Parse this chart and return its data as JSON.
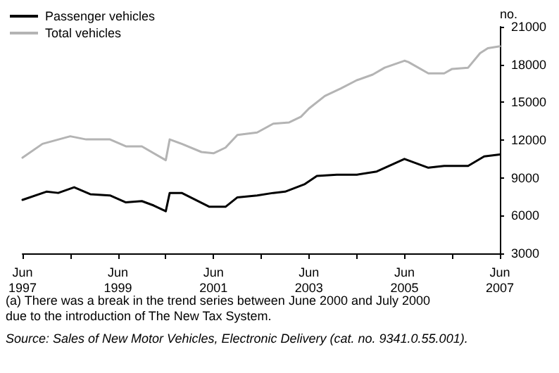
{
  "chart_data": {
    "type": "line",
    "ylabel": "no.",
    "xlim": [
      "1997-06",
      "2007-06"
    ],
    "xticks": [
      {
        "value": "1997-06",
        "label": "Jun\n1997"
      },
      {
        "value": "1998-06",
        "label": null
      },
      {
        "value": "1999-06",
        "label": "Jun\n1999"
      },
      {
        "value": "2000-06",
        "label": null
      },
      {
        "value": "2001-06",
        "label": "Jun\n2001"
      },
      {
        "value": "2002-06",
        "label": null
      },
      {
        "value": "2003-06",
        "label": "Jun\n2003"
      },
      {
        "value": "2004-06",
        "label": null
      },
      {
        "value": "2005-06",
        "label": "Jun\n2005"
      },
      {
        "value": "2006-06",
        "label": null
      },
      {
        "value": "2007-06",
        "label": "Jun\n2007"
      }
    ],
    "ylim": [
      3000,
      21000
    ],
    "yticks": [
      3000,
      6000,
      9000,
      12000,
      15000,
      18000,
      21000
    ],
    "series": [
      {
        "name": "Passenger vehicles",
        "color": "#000000",
        "x": [
          "1997-06",
          "1997-12",
          "1998-03",
          "1998-07",
          "1998-11",
          "1999-04",
          "1999-08",
          "1999-12",
          "2000-03",
          "2000-06",
          "2000-07",
          "2000-10",
          "2001-05",
          "2001-09",
          "2001-12",
          "2002-05",
          "2002-09",
          "2002-12",
          "2003-05",
          "2003-08",
          "2004-01",
          "2004-06",
          "2004-11",
          "2005-06",
          "2005-12",
          "2006-04",
          "2006-10",
          "2007-02",
          "2007-06"
        ],
        "values": [
          7250,
          7900,
          7800,
          8250,
          7700,
          7600,
          7050,
          7150,
          6800,
          6350,
          7800,
          7800,
          6700,
          6700,
          7450,
          7600,
          7800,
          7900,
          8500,
          9150,
          9250,
          9250,
          9500,
          10500,
          9800,
          9950,
          9950,
          10700,
          10850
        ]
      },
      {
        "name": "Total vehicles",
        "color": "#b4b4b4",
        "x": [
          "1997-06",
          "1997-11",
          "1998-06",
          "1998-10",
          "1999-04",
          "1999-08",
          "1999-12",
          "2000-06",
          "2000-07",
          "2000-10",
          "2001-03",
          "2001-06",
          "2001-09",
          "2001-12",
          "2002-05",
          "2002-09",
          "2003-01",
          "2003-04",
          "2003-06",
          "2003-10",
          "2004-02",
          "2004-06",
          "2004-10",
          "2005-01",
          "2005-06",
          "2005-07",
          "2005-12",
          "2006-04",
          "2006-06",
          "2006-10",
          "2007-01",
          "2007-03",
          "2007-06"
        ],
        "values": [
          10600,
          11700,
          12300,
          12050,
          12050,
          11500,
          11500,
          10400,
          12050,
          11700,
          11050,
          10950,
          11400,
          12400,
          12600,
          13300,
          13400,
          13850,
          14500,
          15500,
          16100,
          16750,
          17200,
          17750,
          18300,
          18200,
          17300,
          17300,
          17650,
          17750,
          18900,
          19300,
          19450
        ]
      }
    ],
    "grid": false,
    "legend": "top left",
    "marker": "none",
    "line_style": "solid",
    "annotations": [
      "(a) There was a break in the trend series between June 2000 and July 2000 due to the introduction of The New Tax System.",
      "Source: Sales of New Motor Vehicles, Electronic Delivery (cat. no. 9341.0.55.001)."
    ]
  }
}
